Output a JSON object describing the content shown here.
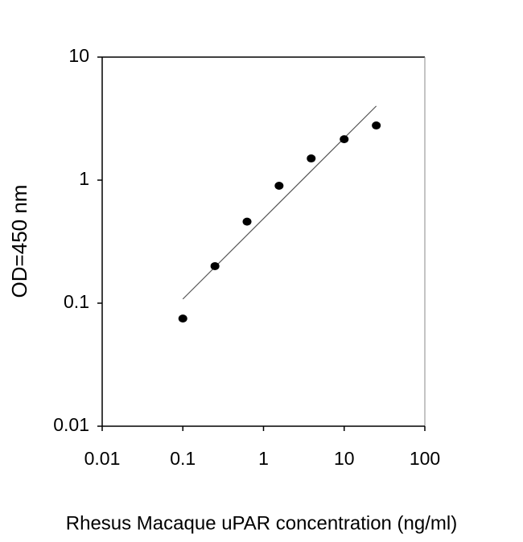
{
  "chart_data": {
    "type": "scatter",
    "xlabel": "Rhesus Macaque uPAR concentration (ng/ml)",
    "ylabel": "OD=450 nm",
    "xscale": "log",
    "yscale": "log",
    "xlim": [
      0.01,
      100
    ],
    "ylim": [
      0.01,
      10
    ],
    "xticks": [
      0.01,
      0.1,
      1,
      10,
      100
    ],
    "yticks": [
      0.01,
      0.1,
      1,
      10
    ],
    "series": [
      {
        "color": "#000000",
        "x": [
          0.1,
          0.25,
          0.625,
          1.56,
          3.9,
          10,
          25
        ],
        "values": [
          0.075,
          0.2,
          0.46,
          0.9,
          1.5,
          2.15,
          2.78
        ]
      }
    ],
    "fit_line": {
      "color": "#555555",
      "x": [
        0.1,
        25
      ],
      "values": [
        0.108,
        4.0
      ]
    }
  }
}
